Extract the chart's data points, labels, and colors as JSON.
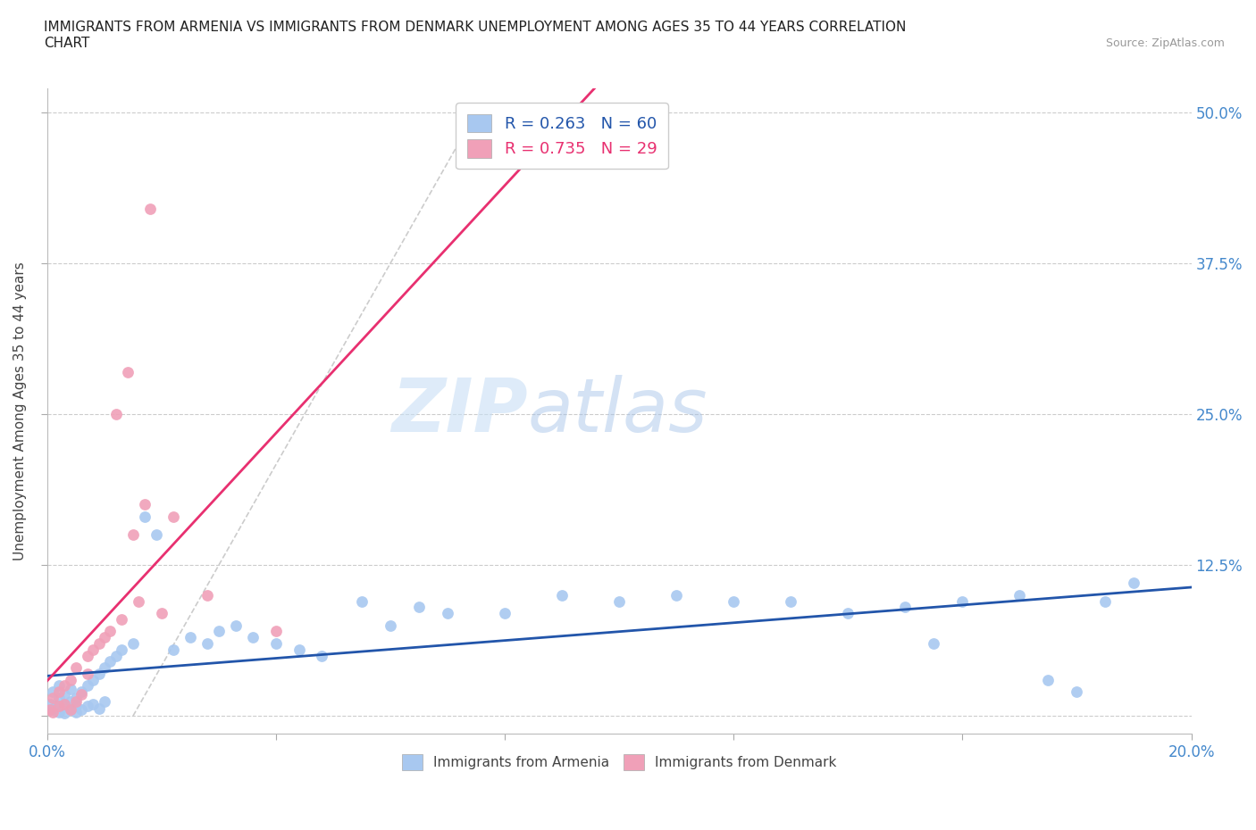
{
  "title": "IMMIGRANTS FROM ARMENIA VS IMMIGRANTS FROM DENMARK UNEMPLOYMENT AMONG AGES 35 TO 44 YEARS CORRELATION\nCHART",
  "source_text": "Source: ZipAtlas.com",
  "ylabel": "Unemployment Among Ages 35 to 44 years",
  "xlim": [
    0.0,
    0.2
  ],
  "ylim": [
    -0.015,
    0.52
  ],
  "yticks": [
    0.0,
    0.125,
    0.25,
    0.375,
    0.5
  ],
  "ytick_labels": [
    "",
    "12.5%",
    "25.0%",
    "37.5%",
    "50.0%"
  ],
  "xticks": [
    0.0,
    0.04,
    0.08,
    0.12,
    0.16,
    0.2
  ],
  "xtick_labels": [
    "0.0%",
    "",
    "",
    "",
    "",
    "20.0%"
  ],
  "armenia_R": 0.263,
  "armenia_N": 60,
  "denmark_R": 0.735,
  "denmark_N": 29,
  "armenia_color": "#a8c8f0",
  "denmark_color": "#f0a0b8",
  "armenia_line_color": "#2255aa",
  "denmark_line_color": "#e83070",
  "watermark_zip": "ZIP",
  "watermark_atlas": "atlas",
  "background_color": "#ffffff",
  "grid_color": "#cccccc",
  "tick_label_color": "#4488cc",
  "armenia_x": [
    0.0005,
    0.001,
    0.001,
    0.0015,
    0.002,
    0.002,
    0.002,
    0.003,
    0.003,
    0.003,
    0.004,
    0.004,
    0.004,
    0.005,
    0.005,
    0.005,
    0.006,
    0.006,
    0.007,
    0.007,
    0.008,
    0.008,
    0.009,
    0.009,
    0.01,
    0.01,
    0.011,
    0.012,
    0.013,
    0.015,
    0.017,
    0.019,
    0.022,
    0.025,
    0.028,
    0.03,
    0.033,
    0.036,
    0.04,
    0.044,
    0.048,
    0.055,
    0.06,
    0.065,
    0.07,
    0.08,
    0.09,
    0.1,
    0.11,
    0.12,
    0.13,
    0.14,
    0.15,
    0.155,
    0.16,
    0.17,
    0.175,
    0.18,
    0.185,
    0.19
  ],
  "armenia_y": [
    0.01,
    0.005,
    0.02,
    0.008,
    0.015,
    0.003,
    0.025,
    0.01,
    0.018,
    0.002,
    0.022,
    0.005,
    0.012,
    0.015,
    0.003,
    0.008,
    0.02,
    0.005,
    0.025,
    0.008,
    0.03,
    0.01,
    0.035,
    0.006,
    0.04,
    0.012,
    0.045,
    0.05,
    0.055,
    0.06,
    0.165,
    0.15,
    0.055,
    0.065,
    0.06,
    0.07,
    0.075,
    0.065,
    0.06,
    0.055,
    0.05,
    0.095,
    0.075,
    0.09,
    0.085,
    0.085,
    0.1,
    0.095,
    0.1,
    0.095,
    0.095,
    0.085,
    0.09,
    0.06,
    0.095,
    0.1,
    0.03,
    0.02,
    0.095,
    0.11
  ],
  "denmark_x": [
    0.0005,
    0.001,
    0.001,
    0.002,
    0.002,
    0.003,
    0.003,
    0.004,
    0.004,
    0.005,
    0.005,
    0.006,
    0.007,
    0.007,
    0.008,
    0.009,
    0.01,
    0.011,
    0.012,
    0.013,
    0.014,
    0.015,
    0.016,
    0.017,
    0.018,
    0.02,
    0.022,
    0.028,
    0.04
  ],
  "denmark_y": [
    0.005,
    0.003,
    0.015,
    0.008,
    0.02,
    0.01,
    0.025,
    0.005,
    0.03,
    0.012,
    0.04,
    0.018,
    0.035,
    0.05,
    0.055,
    0.06,
    0.065,
    0.07,
    0.25,
    0.08,
    0.285,
    0.15,
    0.095,
    0.175,
    0.42,
    0.085,
    0.165,
    0.1,
    0.07
  ]
}
